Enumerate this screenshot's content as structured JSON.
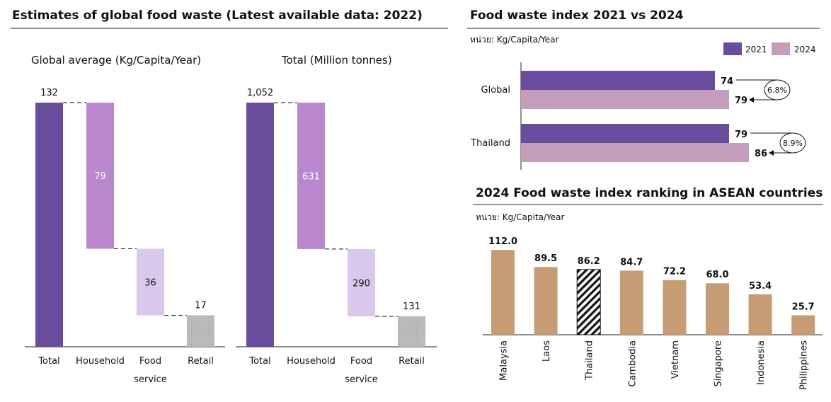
{
  "left_panel": {
    "title": "Estimates of global food waste (Latest available data: 2022)"
  },
  "waterfall_charts": [
    {
      "title": "Global average (Kg/Capita/Year)",
      "categories": [
        "Total",
        "Household",
        "Food service",
        "Retail"
      ],
      "category_lines": [
        [
          "Total"
        ],
        [
          "Household"
        ],
        [
          "Food",
          "service"
        ],
        [
          "Retail"
        ]
      ],
      "values": [
        132,
        79,
        36,
        17
      ],
      "labels": [
        "132",
        "79",
        "36",
        "17"
      ],
      "colors": [
        "#6a4c9c",
        "#bb88cf",
        "#d9c8ec",
        "#bdbdbd"
      ]
    },
    {
      "title": "Total (Million tonnes)",
      "categories": [
        "Total",
        "Household",
        "Food service",
        "Retail"
      ],
      "category_lines": [
        [
          "Total"
        ],
        [
          "Household"
        ],
        [
          "Food",
          "service"
        ],
        [
          "Retail"
        ]
      ],
      "values": [
        1052,
        631,
        290,
        131
      ],
      "labels": [
        "1,052",
        "631",
        "290",
        "131"
      ],
      "colors": [
        "#6a4c9c",
        "#bb88cf",
        "#d9c8ec",
        "#bdbdbd"
      ]
    }
  ],
  "chart_data": [
    {
      "type": "bar",
      "subtype": "waterfall",
      "title": "Global average (Kg/Capita/Year)",
      "categories": [
        "Total",
        "Household",
        "Food service",
        "Retail"
      ],
      "values": [
        132,
        79,
        36,
        17
      ]
    },
    {
      "type": "bar",
      "subtype": "waterfall",
      "title": "Total (Million tonnes)",
      "categories": [
        "Total",
        "Household",
        "Food service",
        "Retail"
      ],
      "values": [
        1052,
        631,
        290,
        131
      ]
    },
    {
      "type": "bar",
      "orientation": "horizontal",
      "title": "Food waste index 2021 vs 2024",
      "unit": "หน่วย: Kg/Capita/Year",
      "categories": [
        "Global",
        "Thailand"
      ],
      "series": [
        {
          "name": "2021",
          "values": [
            74,
            79
          ],
          "color": "#6a4c9c"
        },
        {
          "name": "2024",
          "values": [
            79,
            86
          ],
          "color": "#c39dbb"
        }
      ],
      "annotations": [
        "6.8%",
        "8.9%"
      ],
      "legend": "top-right"
    },
    {
      "type": "bar",
      "title": "2024 Food waste index ranking in ASEAN countries",
      "unit": "หน่วย: Kg/Capita/Year",
      "categories": [
        "Malaysia",
        "Laos",
        "Thailand",
        "Cambodia",
        "Vietnam",
        "Singapore",
        "Indonesia",
        "Philippines"
      ],
      "values": [
        112.0,
        89.5,
        86.2,
        84.7,
        72.2,
        68.0,
        53.4,
        25.7
      ],
      "labels": [
        "112.0",
        "89.5",
        "86.2",
        "84.7",
        "72.2",
        "68.0",
        "53.4",
        "25.7"
      ],
      "color": "#c59c73",
      "highlight": "Thailand"
    }
  ]
}
